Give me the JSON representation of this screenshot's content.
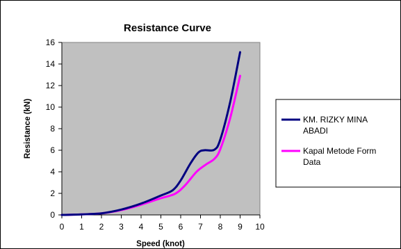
{
  "chart_data": {
    "type": "line",
    "title": "Resistance Curve",
    "xlabel": "Speed (knot)",
    "ylabel": "Resistance (kN)",
    "xlim": [
      0,
      10
    ],
    "ylim": [
      0,
      16
    ],
    "x_ticks": [
      "0",
      "1",
      "2",
      "3",
      "4",
      "5",
      "6",
      "7",
      "8",
      "9",
      "10"
    ],
    "y_ticks": [
      "0",
      "2",
      "4",
      "6",
      "8",
      "10",
      "12",
      "14",
      "16"
    ],
    "plot_background": "#c0c0c0",
    "grid": false,
    "legend_position": "right",
    "series": [
      {
        "name_lines": [
          "KM. RIZKY MINA",
          "ABADI"
        ],
        "color": "#000080",
        "points": [
          [
            0,
            0.0
          ],
          [
            1,
            0.05
          ],
          [
            2,
            0.15
          ],
          [
            3,
            0.5
          ],
          [
            4,
            1.05
          ],
          [
            5,
            1.8
          ],
          [
            5.6,
            2.3
          ],
          [
            6,
            3.2
          ],
          [
            6.5,
            4.8
          ],
          [
            6.9,
            5.8
          ],
          [
            7.2,
            6.0
          ],
          [
            7.7,
            6.05
          ],
          [
            8,
            7.0
          ],
          [
            8.5,
            10.5
          ],
          [
            9,
            15.1
          ]
        ]
      },
      {
        "name_lines": [
          "Kapal Metode Form",
          "Data"
        ],
        "color": "#ff00ff",
        "points": [
          [
            0,
            0.0
          ],
          [
            1,
            0.05
          ],
          [
            2,
            0.15
          ],
          [
            3,
            0.45
          ],
          [
            4,
            0.95
          ],
          [
            5,
            1.55
          ],
          [
            5.7,
            1.95
          ],
          [
            6.2,
            2.7
          ],
          [
            6.8,
            4.0
          ],
          [
            7.3,
            4.7
          ],
          [
            7.7,
            5.2
          ],
          [
            8,
            6.1
          ],
          [
            8.5,
            9.0
          ],
          [
            9,
            12.9
          ]
        ]
      }
    ]
  }
}
